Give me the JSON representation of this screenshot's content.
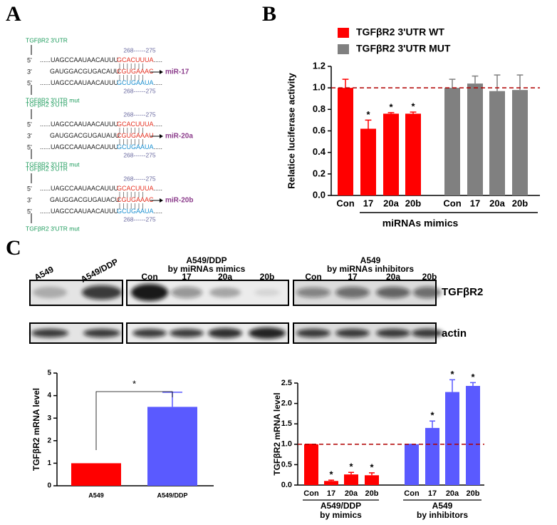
{
  "panel_labels": [
    "A",
    "B",
    "C"
  ],
  "panel_a": {
    "groups": [
      {
        "wt_label": "TGFβR2 3'UTR",
        "mut_label": "TGFβR2 3'UTR mut",
        "positions": "268------275",
        "lines": [
          {
            "end": "5'",
            "pre": "......UAGCCAAUAACAUUU",
            "site": "GCACUUUA",
            "post": "....."
          },
          {
            "end": "3'",
            "pre": "GAUGGACGUGACAUU",
            "site": "CGUGAAAC",
            "mirna": "miR-17"
          },
          {
            "end": "5'",
            "pre": "......UAGCCAAUAACAUUU",
            "site": "GCUGAAUA",
            "post": "....."
          }
        ]
      },
      {
        "wt_label": "TGFβR2 3'UTR",
        "mut_label": "TGFβR2 3'UTR mut",
        "positions": "268------275",
        "lines": [
          {
            "end": "5'",
            "pre": "......UAGCCAAUAACAUUU",
            "site": "GCACUUUA",
            "post": "....."
          },
          {
            "end": "3'",
            "pre": "GAUGGACGUGAUAUU",
            "site": "CGUGAAAU",
            "mirna": "miR-20a"
          },
          {
            "end": "5'",
            "pre": "......UAGCCAAUAACAUUU",
            "site": "GCUGAAUA",
            "post": "....."
          }
        ]
      },
      {
        "wt_label": "TGFβR2 3'UTR",
        "mut_label": "TGFβR2 3'UTR mut",
        "positions": "268------275",
        "lines": [
          {
            "end": "5'",
            "pre": "......UAGCCAAUAACAUUU",
            "site": "GCACUUUA",
            "post": "....."
          },
          {
            "end": "3'",
            "pre": "GAUGGACGUGAUACU",
            "site": "CGUGAAAC",
            "mirna": "miR-20b"
          },
          {
            "end": "5'",
            "pre": "......UAGCCAAUAACAUUU",
            "site": "GCUGAAUA",
            "post": "....."
          }
        ]
      }
    ]
  },
  "blot": {
    "lanes": [
      "A549",
      "A549/DDP"
    ],
    "groups": [
      {
        "title": [
          "A549/DDP",
          "by miRNAs mimics"
        ],
        "lanes": [
          "Con",
          "17",
          "20a",
          "20b"
        ]
      },
      {
        "title": [
          "A549",
          "by miRNAs inhibitors"
        ],
        "lanes": [
          "Con",
          "17",
          "20a",
          "20b"
        ]
      }
    ],
    "rows": [
      "TGFβR2",
      "actin"
    ]
  },
  "chart_data": [
    {
      "type": "bar",
      "ylabel": "Relatice luciferase activity",
      "xlabel": "miRNAs mimics",
      "categories": [
        "Con",
        "17",
        "20a",
        "20b",
        "Con",
        "17",
        "20a",
        "20b"
      ],
      "ylim": [
        0,
        1.2
      ],
      "yticks": [
        {
          "value": 0,
          "label": "0.0"
        },
        {
          "value": 0.2,
          "label": "0.2"
        },
        {
          "value": 0.4,
          "label": "0.4"
        },
        {
          "value": 0.6,
          "label": "0.6"
        },
        {
          "value": 0.8,
          "label": "0.8"
        },
        {
          "value": 1,
          "label": "1.0"
        },
        {
          "value": 1.2,
          "label": "1.2"
        }
      ],
      "reference_line": 1,
      "legend": "top-left",
      "series": [
        {
          "name": "TGFβR2 3'UTR WT",
          "color": "#ff0000",
          "values": [
            1.0,
            0.62,
            0.76,
            0.76,
            null,
            null,
            null,
            null
          ],
          "errors": [
            0.08,
            0.08,
            0.01,
            0.015,
            null,
            null,
            null,
            null
          ],
          "significance": [
            null,
            "*",
            "*",
            "*",
            null,
            null,
            null,
            null
          ]
        },
        {
          "name": "TGFβR2 3'UTR MUT",
          "color": "#808080",
          "values": [
            null,
            null,
            null,
            null,
            1.0,
            1.04,
            0.97,
            0.98
          ],
          "errors": [
            null,
            null,
            null,
            null,
            0.08,
            0.07,
            0.15,
            0.14
          ]
        }
      ]
    },
    {
      "type": "bar",
      "ylabel": "TGFβR2 mRNA level",
      "categories": [
        "A549",
        "A549/DDP"
      ],
      "ylim": [
        0,
        5
      ],
      "yticks": [
        0,
        1,
        2,
        3,
        4,
        5
      ],
      "comparison": "*",
      "series": [
        {
          "color": "#ff0000",
          "values": [
            1.0,
            null
          ]
        },
        {
          "color": "#5a5aff",
          "values": [
            null,
            3.5
          ],
          "errors": [
            null,
            0.65
          ]
        }
      ]
    },
    {
      "type": "bar",
      "ylabel": "TGFβR2 mRNA level",
      "categories": [
        "Con",
        "17",
        "20a",
        "20b",
        "Con",
        "17",
        "20a",
        "20b"
      ],
      "ylim": [
        0,
        2.5
      ],
      "yticks": [
        {
          "value": 0,
          "label": "0.0"
        },
        {
          "value": 0.5,
          "label": "0.5"
        },
        {
          "value": 1,
          "label": "1.0"
        },
        {
          "value": 1.5,
          "label": "1.5"
        },
        {
          "value": 2,
          "label": "2.0"
        },
        {
          "value": 2.5,
          "label": "2.5"
        }
      ],
      "reference_line": 1,
      "groups": [
        [
          "A549/DDP",
          "by mimics"
        ],
        [
          "A549",
          "by inhibitors"
        ]
      ],
      "series": [
        {
          "color": "#ff0000",
          "values": [
            1.0,
            0.1,
            0.26,
            0.24,
            null,
            null,
            null,
            null
          ],
          "errors": [
            0,
            0.02,
            0.05,
            0.06,
            null,
            null,
            null,
            null
          ],
          "significance": [
            null,
            "*",
            "*",
            "*",
            null,
            null,
            null,
            null
          ]
        },
        {
          "color": "#5a5aff",
          "values": [
            null,
            null,
            null,
            null,
            1.0,
            1.4,
            2.28,
            2.43
          ],
          "errors": [
            null,
            null,
            null,
            null,
            0,
            0.17,
            0.3,
            0.08
          ],
          "significance": [
            null,
            null,
            null,
            null,
            null,
            "*",
            "*",
            "*"
          ]
        }
      ]
    }
  ]
}
